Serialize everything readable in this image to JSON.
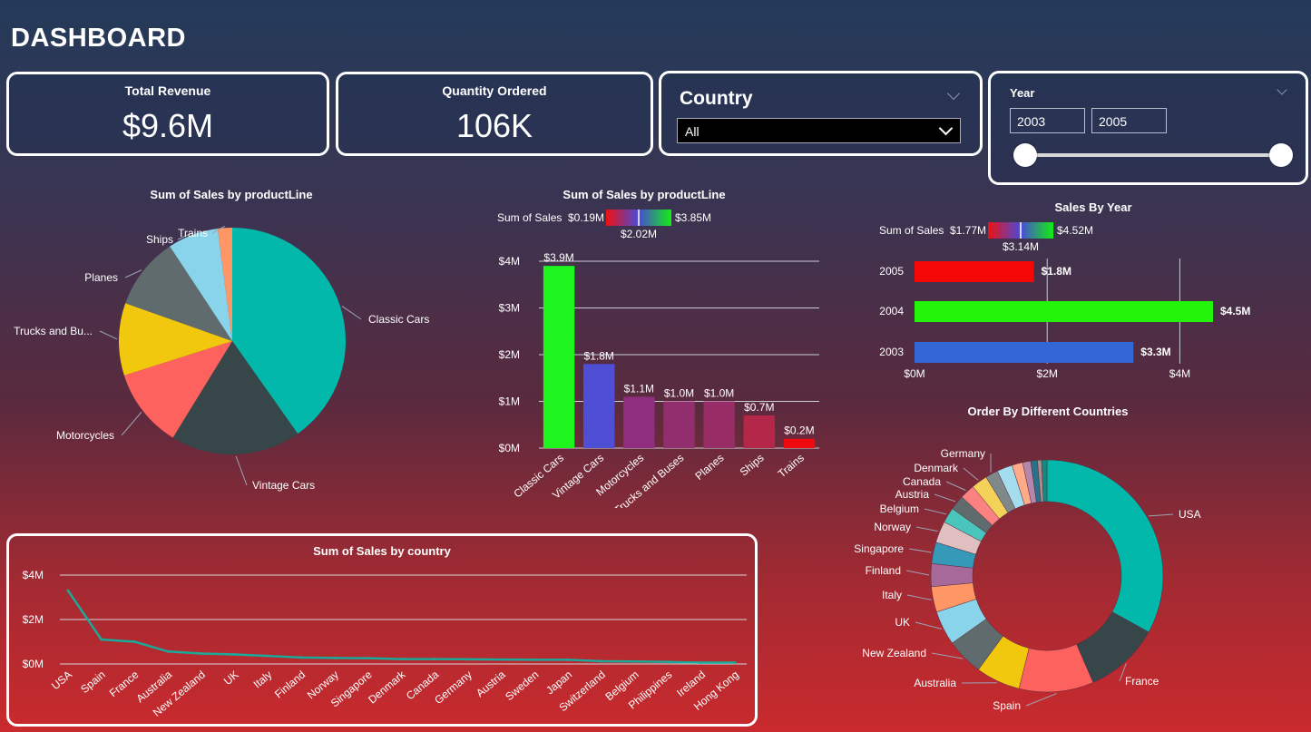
{
  "header": {
    "title": "DASHBOARD"
  },
  "kpis": {
    "revenue": {
      "label": "Total Revenue",
      "value": "$9.6M"
    },
    "quantity": {
      "label": "Quantity Ordered",
      "value": "106K"
    }
  },
  "country_slicer": {
    "title": "Country",
    "selected": "All"
  },
  "year_slicer": {
    "title": "Year",
    "from": "2003",
    "to": "2005"
  },
  "colors": {
    "teal": "#01b8aa",
    "dark": "#374649",
    "salmon": "#fd625e",
    "yellow": "#f2c80f",
    "slate": "#5f6b6d",
    "sky": "#8ad4eb",
    "orange": "#fe9666",
    "line": "#1aa99a"
  },
  "chart_data": [
    {
      "id": "pie",
      "type": "pie",
      "title": "Sum of Sales by productLine",
      "categories": [
        "Classic Cars",
        "Vintage Cars",
        "Motorcycles",
        "Trucks and Bu...",
        "Planes",
        "Ships",
        "Trains"
      ],
      "values": [
        3.9,
        1.8,
        1.1,
        1.0,
        1.0,
        0.7,
        0.2
      ],
      "colors": [
        "#01b8aa",
        "#374649",
        "#fd625e",
        "#f2c80f",
        "#5f6b6d",
        "#8ad4eb",
        "#fe9666"
      ]
    },
    {
      "id": "bars",
      "type": "bar",
      "title": "Sum of Sales by productLine",
      "legend": {
        "label": "Sum of Sales",
        "min": "$0.19M",
        "mid": "$2.02M",
        "max": "$3.85M"
      },
      "categories": [
        "Classic Cars",
        "Vintage Cars",
        "Motorcycles",
        "Trucks and Buses",
        "Planes",
        "Ships",
        "Trains"
      ],
      "values": [
        3.9,
        1.8,
        1.1,
        1.0,
        1.0,
        0.7,
        0.2
      ],
      "data_labels": [
        "$3.9M",
        "$1.8M",
        "$1.1M",
        "$1.0M",
        "$1.0M",
        "$0.7M",
        "$0.2M"
      ],
      "colors": [
        "#1ef41e",
        "#4f4fd6",
        "#8f2e7e",
        "#922e6e",
        "#982c66",
        "#b42748",
        "#ee0a0f"
      ],
      "ylim": [
        0,
        4
      ],
      "yticks": [
        "$0M",
        "$1M",
        "$2M",
        "$3M",
        "$4M"
      ]
    },
    {
      "id": "years",
      "type": "bar",
      "orientation": "horizontal",
      "title": "Sales By Year",
      "legend": {
        "label": "Sum of Sales",
        "min": "$1.77M",
        "mid": "$3.14M",
        "max": "$4.52M"
      },
      "categories": [
        "2005",
        "2004",
        "2003"
      ],
      "values": [
        1.8,
        4.5,
        3.3
      ],
      "data_labels": [
        "$1.8M",
        "$4.5M",
        "$3.3M"
      ],
      "colors": [
        "#f40707",
        "#22f40a",
        "#3367d6"
      ],
      "xlim": [
        0,
        4.5
      ],
      "xticks": [
        "$0M",
        "$2M",
        "$4M"
      ]
    },
    {
      "id": "donut",
      "type": "pie",
      "variant": "donut",
      "title": "Order By Different Countries",
      "categories": [
        "USA",
        "France",
        "Spain",
        "Australia",
        "New Zealand",
        "UK",
        "Italy",
        "Finland",
        "Singapore",
        "Norway",
        "Belgium",
        "Austria",
        "Canada",
        "Denmark",
        "Germany",
        "Sweden",
        "Japan",
        "Switzerland",
        "Philippines",
        "Ireland",
        "Hong Kong"
      ],
      "values": [
        35.3,
        11.2,
        11.1,
        6.6,
        5.5,
        5.1,
        3.8,
        3.4,
        3.2,
        3.2,
        2.3,
        2.2,
        2.2,
        2.4,
        1.9,
        2.3,
        1.6,
        1.2,
        1.0,
        0.6,
        0.8
      ],
      "colors": [
        "#01b8aa",
        "#374649",
        "#fd625e",
        "#f2c80f",
        "#5f6b6d",
        "#8ad4eb",
        "#fe9666",
        "#a66999",
        "#3599b8",
        "#dfbfbf",
        "#4ac5bb",
        "#5f6b6d",
        "#fb8281",
        "#f4d25a",
        "#7f898a",
        "#a4ddee",
        "#fdab89",
        "#b687ac",
        "#28738a",
        "#a78f8f",
        "#168980"
      ],
      "labeled": [
        "USA",
        "France",
        "Spain",
        "Australia",
        "New Zealand",
        "UK",
        "Italy",
        "Finland",
        "Singapore",
        "Norway",
        "Belgium",
        "Austria",
        "Canada",
        "Denmark",
        "Germany"
      ]
    },
    {
      "id": "line",
      "type": "line",
      "title": "Sum of Sales by country",
      "categories": [
        "USA",
        "Spain",
        "France",
        "Australia",
        "New Zealand",
        "UK",
        "Italy",
        "Finland",
        "Norway",
        "Singapore",
        "Denmark",
        "Canada",
        "Germany",
        "Austria",
        "Sweden",
        "Japan",
        "Switzerland",
        "Belgium",
        "Philippines",
        "Ireland",
        "Hong Kong"
      ],
      "values": [
        3.3,
        1.1,
        1.0,
        0.56,
        0.47,
        0.43,
        0.36,
        0.29,
        0.27,
        0.26,
        0.22,
        0.22,
        0.21,
        0.2,
        0.19,
        0.19,
        0.12,
        0.11,
        0.09,
        0.06,
        0.06
      ],
      "ylim": [
        0,
        4
      ],
      "yticks": [
        "$0M",
        "$2M",
        "$4M"
      ],
      "color": "#1aa99a"
    }
  ]
}
